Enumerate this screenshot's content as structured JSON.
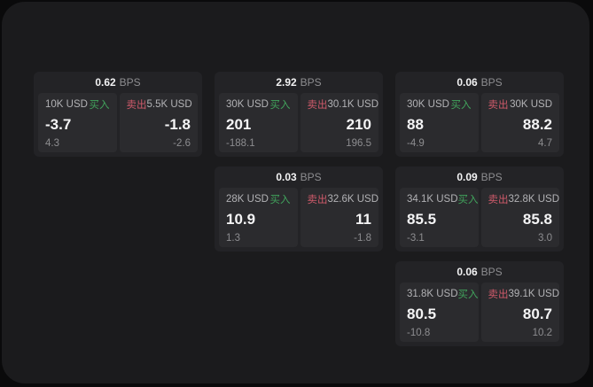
{
  "labels": {
    "bps_unit": "BPS",
    "buy": "买入",
    "sell": "卖出"
  },
  "colors": {
    "page_background": "#1b1b1d",
    "outer_background": "#0a0a0b",
    "card_background": "#232326",
    "panel_background": "#2b2b2e",
    "buy_accent": "#41a35c",
    "sell_accent": "#cf5a6a",
    "primary_text": "#f4f4f5",
    "muted_text": "#8d8d90"
  },
  "cards": [
    {
      "spread": "0.62",
      "buy": {
        "size": "10K USD",
        "price": "-3.7",
        "delta": "4.3"
      },
      "sell": {
        "size": "5.5K USD",
        "price": "-1.8",
        "delta": "-2.6"
      }
    },
    {
      "spread": "2.92",
      "buy": {
        "size": "30K USD",
        "price": "201",
        "delta": "-188.1"
      },
      "sell": {
        "size": "30.1K USD",
        "price": "210",
        "delta": "196.5"
      }
    },
    {
      "spread": "0.06",
      "buy": {
        "size": "30K USD",
        "price": "88",
        "delta": "-4.9"
      },
      "sell": {
        "size": "30K USD",
        "price": "88.2",
        "delta": "4.7"
      }
    },
    {
      "spread": "0.03",
      "buy": {
        "size": "28K USD",
        "price": "10.9",
        "delta": "1.3"
      },
      "sell": {
        "size": "32.6K USD",
        "price": "11",
        "delta": "-1.8"
      }
    },
    {
      "spread": "0.09",
      "buy": {
        "size": "34.1K USD",
        "price": "85.5",
        "delta": "-3.1"
      },
      "sell": {
        "size": "32.8K USD",
        "price": "85.8",
        "delta": "3.0"
      }
    },
    {
      "spread": "0.06",
      "buy": {
        "size": "31.8K USD",
        "price": "80.5",
        "delta": "-10.8"
      },
      "sell": {
        "size": "39.1K USD",
        "price": "80.7",
        "delta": "10.2"
      }
    }
  ]
}
